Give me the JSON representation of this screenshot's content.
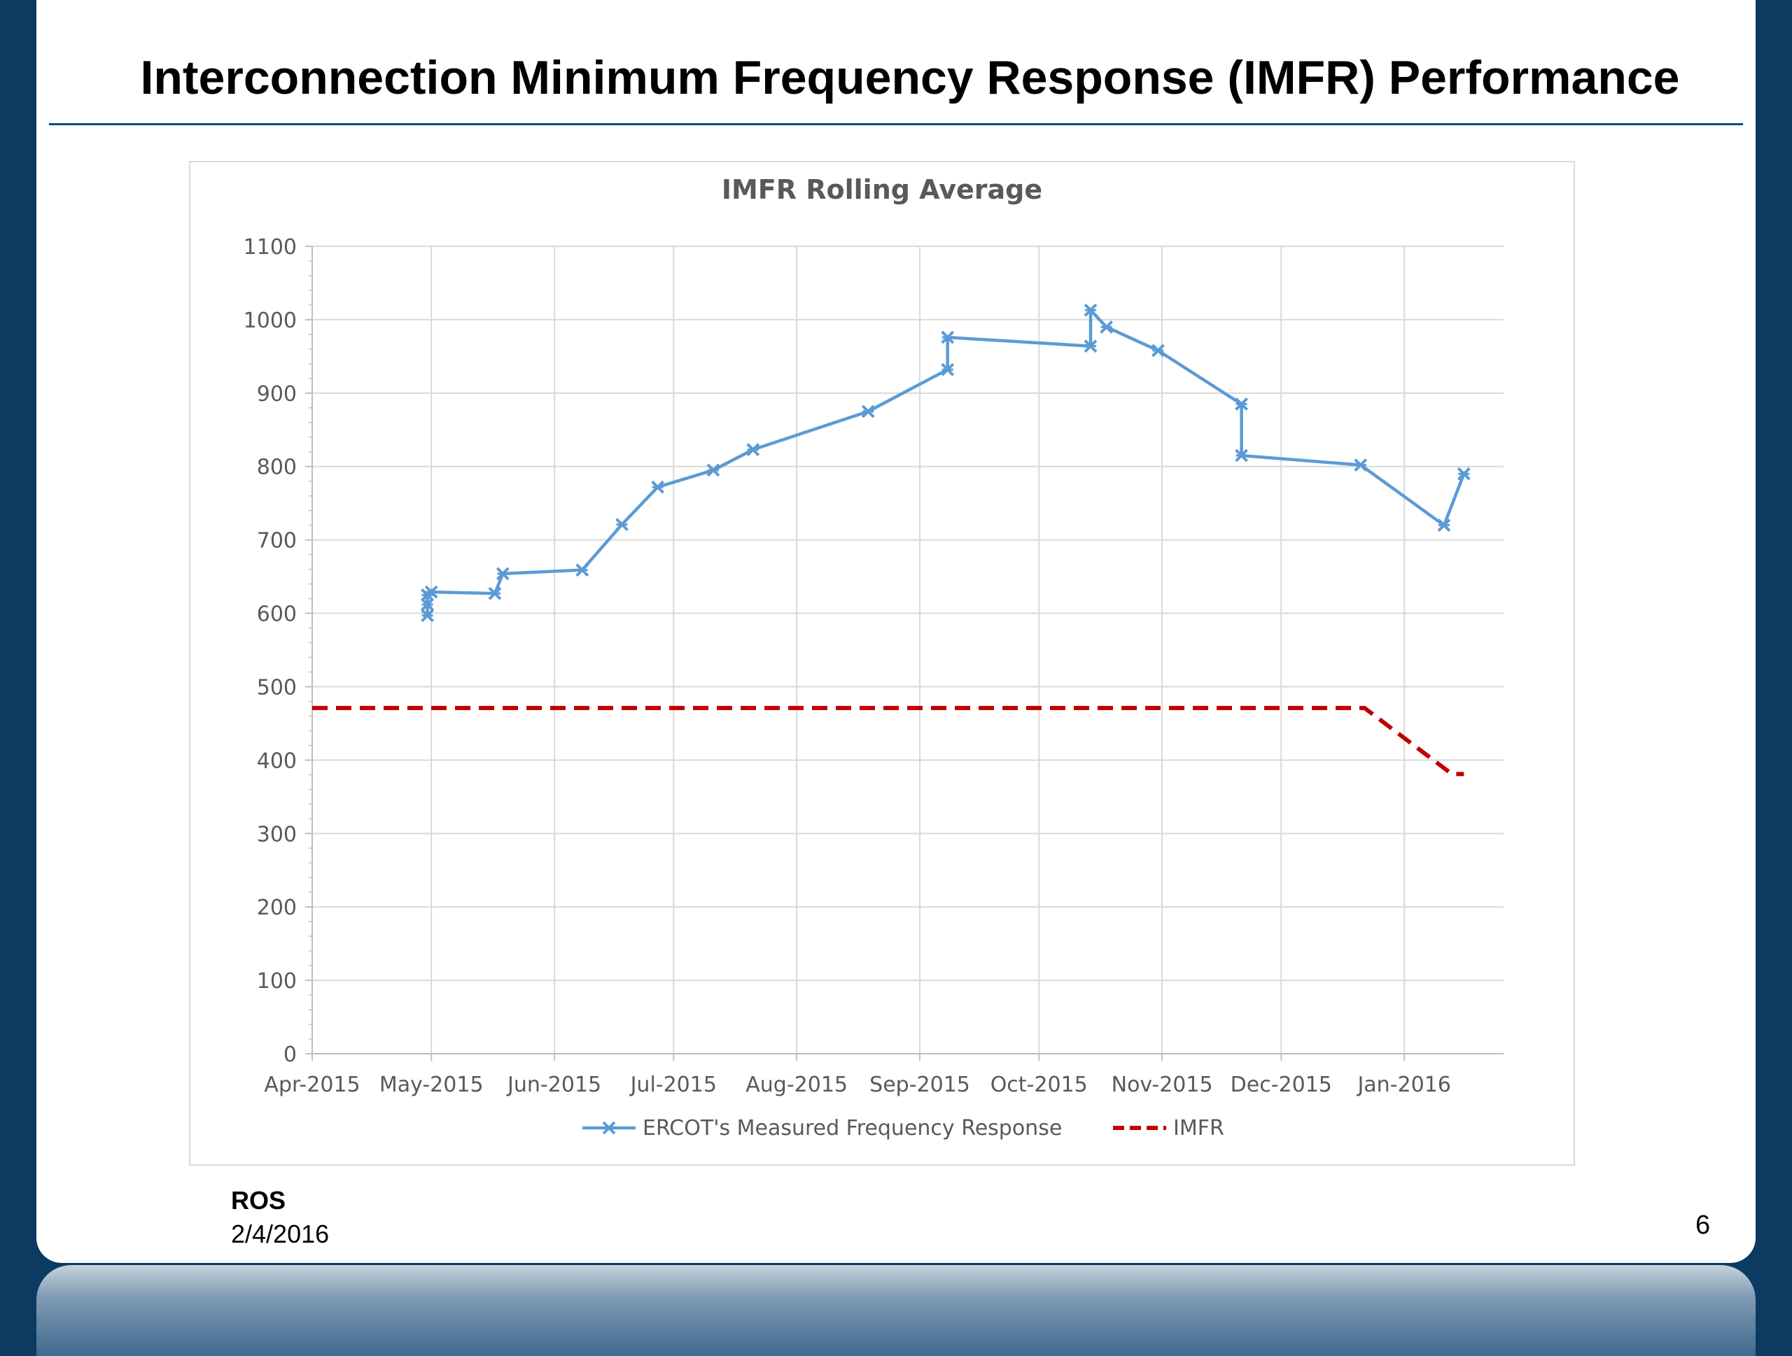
{
  "slide": {
    "title": "Interconnection Minimum Frequency Response (IMFR) Performance",
    "footer_org": "ROS",
    "footer_date": "2/4/2016",
    "page_number": "6"
  },
  "colors": {
    "measured": "#5b9bd5",
    "imfr": "#c00000",
    "grid": "#d9d9d9",
    "text": "#595959",
    "background_frame": "#0c3a60"
  },
  "chart_data": {
    "type": "line",
    "title": "IMFR Rolling Average",
    "xlabel": "",
    "ylabel": "",
    "x_type": "date",
    "xlim": [
      "2015-04-01",
      "2016-01-26"
    ],
    "ylim": [
      0,
      1100
    ],
    "y_ticks": [
      0,
      100,
      200,
      300,
      400,
      500,
      600,
      700,
      800,
      900,
      1000,
      1100
    ],
    "x_ticks": [
      {
        "date": "2015-04-01",
        "label": "Apr-2015"
      },
      {
        "date": "2015-05-01",
        "label": "May-2015"
      },
      {
        "date": "2015-06-01",
        "label": "Jun-2015"
      },
      {
        "date": "2015-07-01",
        "label": "Jul-2015"
      },
      {
        "date": "2015-08-01",
        "label": "Aug-2015"
      },
      {
        "date": "2015-09-01",
        "label": "Sep-2015"
      },
      {
        "date": "2015-10-01",
        "label": "Oct-2015"
      },
      {
        "date": "2015-11-01",
        "label": "Nov-2015"
      },
      {
        "date": "2015-12-01",
        "label": "Dec-2015"
      },
      {
        "date": "2016-01-01",
        "label": "Jan-2016"
      }
    ],
    "grid": true,
    "legend_position": "bottom",
    "series": [
      {
        "name": "ERCOT's Measured Frequency Response",
        "style": "solid-markers",
        "points": [
          {
            "x": "2015-04-30",
            "y": 597
          },
          {
            "x": "2015-04-30",
            "y": 612
          },
          {
            "x": "2015-04-30",
            "y": 625
          },
          {
            "x": "2015-05-01",
            "y": 629
          },
          {
            "x": "2015-05-17",
            "y": 627
          },
          {
            "x": "2015-05-19",
            "y": 654
          },
          {
            "x": "2015-06-08",
            "y": 659
          },
          {
            "x": "2015-06-18",
            "y": 721
          },
          {
            "x": "2015-06-27",
            "y": 772
          },
          {
            "x": "2015-07-11",
            "y": 795
          },
          {
            "x": "2015-07-21",
            "y": 823
          },
          {
            "x": "2015-08-19",
            "y": 875
          },
          {
            "x": "2015-09-08",
            "y": 932
          },
          {
            "x": "2015-09-08",
            "y": 976
          },
          {
            "x": "2015-10-14",
            "y": 964
          },
          {
            "x": "2015-10-14",
            "y": 1013
          },
          {
            "x": "2015-10-18",
            "y": 990
          },
          {
            "x": "2015-10-31",
            "y": 958
          },
          {
            "x": "2015-11-21",
            "y": 885
          },
          {
            "x": "2015-11-21",
            "y": 815
          },
          {
            "x": "2015-12-21",
            "y": 802
          },
          {
            "x": "2016-01-11",
            "y": 720
          },
          {
            "x": "2016-01-16",
            "y": 790
          }
        ]
      },
      {
        "name": "IMFR",
        "style": "dashed",
        "points": [
          {
            "x": "2015-04-01",
            "y": 471
          },
          {
            "x": "2015-12-22",
            "y": 471
          },
          {
            "x": "2016-01-13",
            "y": 381
          },
          {
            "x": "2016-01-16",
            "y": 381
          }
        ]
      }
    ]
  }
}
